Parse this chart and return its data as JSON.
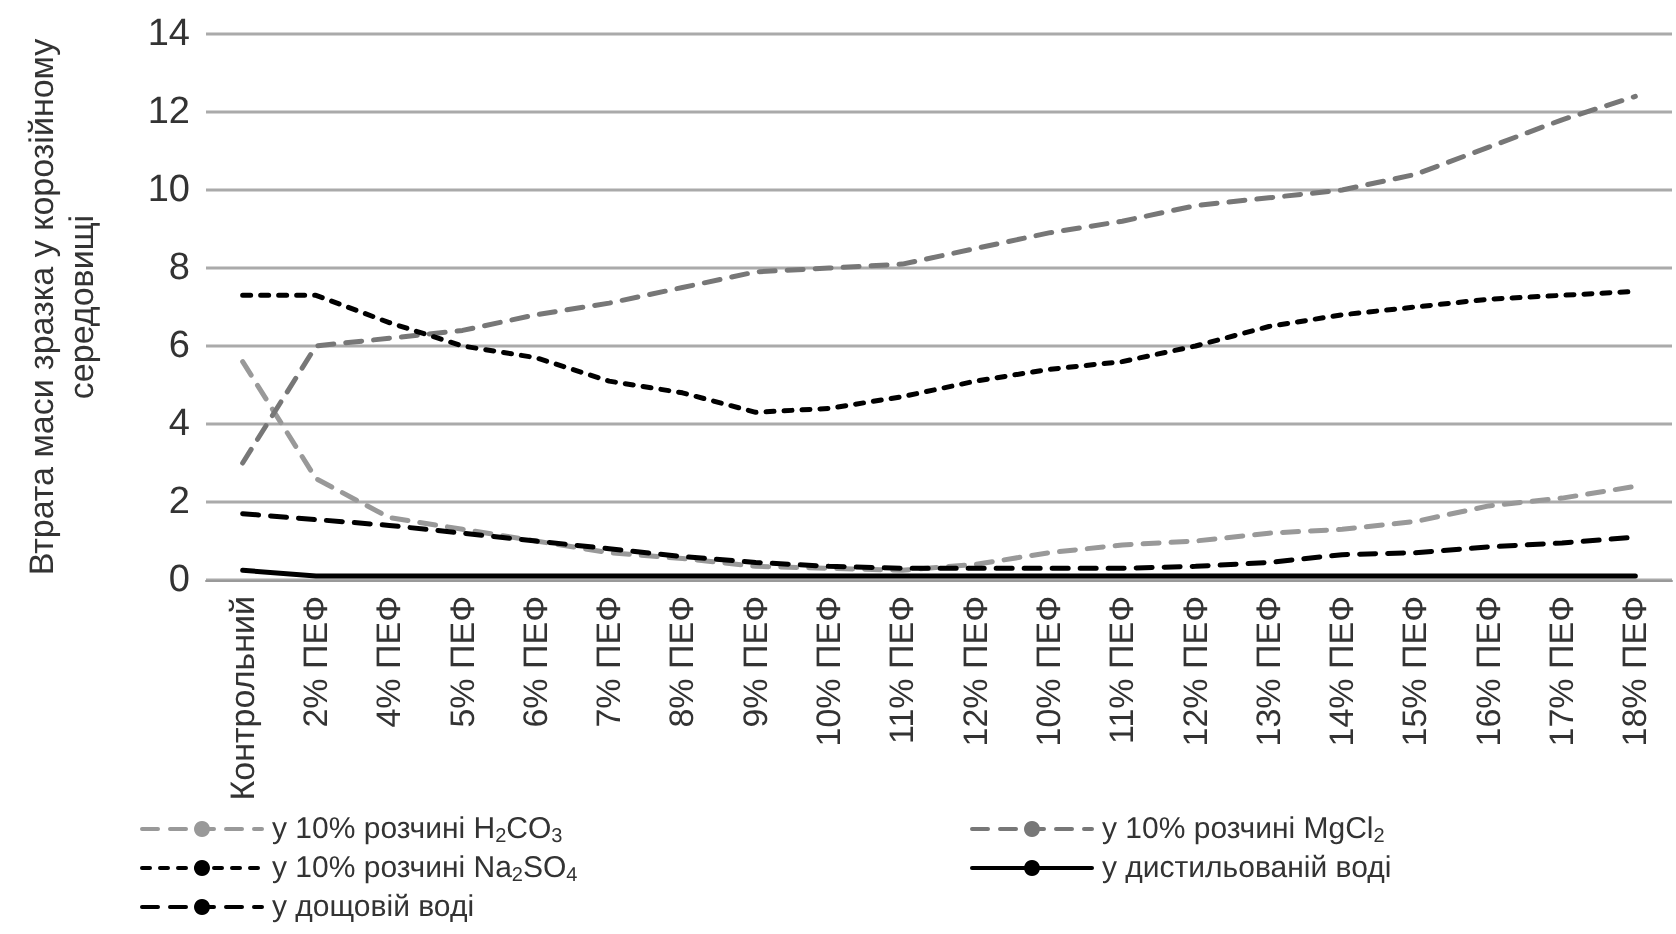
{
  "chart_data": {
    "type": "line",
    "ylabel": "Втрата маси зразка у корозійному середовищі",
    "categories": [
      "Контрольний",
      "2% ПЕФ",
      "4% ПЕФ",
      "5% ПЕФ",
      "6% ПЕФ",
      "7% ПЕФ",
      "8% ПЕФ",
      "9% ПЕФ",
      "10% ПЕФ",
      "11% ПЕФ",
      "12% ПЕФ",
      "10% ПЕФ",
      "11% ПЕФ",
      "12% ПЕФ",
      "13% ПЕФ",
      "14% ПЕФ",
      "15% ПЕФ",
      "16% ПЕФ",
      "17% ПЕФ",
      "18% ПЕФ"
    ],
    "series": [
      {
        "name": "у 10% розчині H$_{2}$CO$_{3}$",
        "color": "#999999",
        "line_style": "dashed",
        "values": [
          5.6,
          2.6,
          1.6,
          1.3,
          1.0,
          0.7,
          0.55,
          0.35,
          0.3,
          0.25,
          0.4,
          0.7,
          0.9,
          1.0,
          1.2,
          1.3,
          1.5,
          1.9,
          2.1,
          2.4
        ]
      },
      {
        "name": "у 10% розчині MgCl$_{2}$",
        "color": "#777777",
        "line_style": "dashed",
        "values": [
          3.0,
          6.0,
          6.2,
          6.4,
          6.8,
          7.1,
          7.5,
          7.9,
          8.0,
          8.1,
          8.5,
          8.9,
          9.2,
          9.6,
          9.8,
          10.0,
          10.4,
          11.1,
          11.8,
          12.4
        ]
      },
      {
        "name": "у 10% розчині Na$_{2}$SO$_{4}$",
        "color": "#000000",
        "line_style": "dotted",
        "values": [
          7.3,
          7.3,
          6.6,
          6.0,
          5.7,
          5.1,
          4.8,
          4.3,
          4.4,
          4.7,
          5.1,
          5.4,
          5.6,
          6.0,
          6.5,
          6.8,
          7.0,
          7.2,
          7.3,
          7.4
        ]
      },
      {
        "name": "у дистильованій воді",
        "color": "#000000",
        "line_style": "solid",
        "values": [
          0.25,
          0.1,
          0.1,
          0.1,
          0.1,
          0.1,
          0.1,
          0.1,
          0.1,
          0.1,
          0.1,
          0.1,
          0.1,
          0.1,
          0.1,
          0.1,
          0.1,
          0.1,
          0.1,
          0.1
        ]
      },
      {
        "name": "у дощовій воді",
        "color": "#000000",
        "line_style": "dashed",
        "values": [
          1.7,
          1.55,
          1.4,
          1.2,
          1.0,
          0.8,
          0.6,
          0.45,
          0.35,
          0.3,
          0.3,
          0.3,
          0.3,
          0.35,
          0.45,
          0.65,
          0.7,
          0.85,
          0.95,
          1.1
        ]
      }
    ],
    "ylim": [
      0,
      14
    ],
    "yticks": [
      0,
      2,
      4,
      6,
      8,
      10,
      12,
      14
    ],
    "grid": "y",
    "legend": "bottom",
    "marker": "none"
  }
}
